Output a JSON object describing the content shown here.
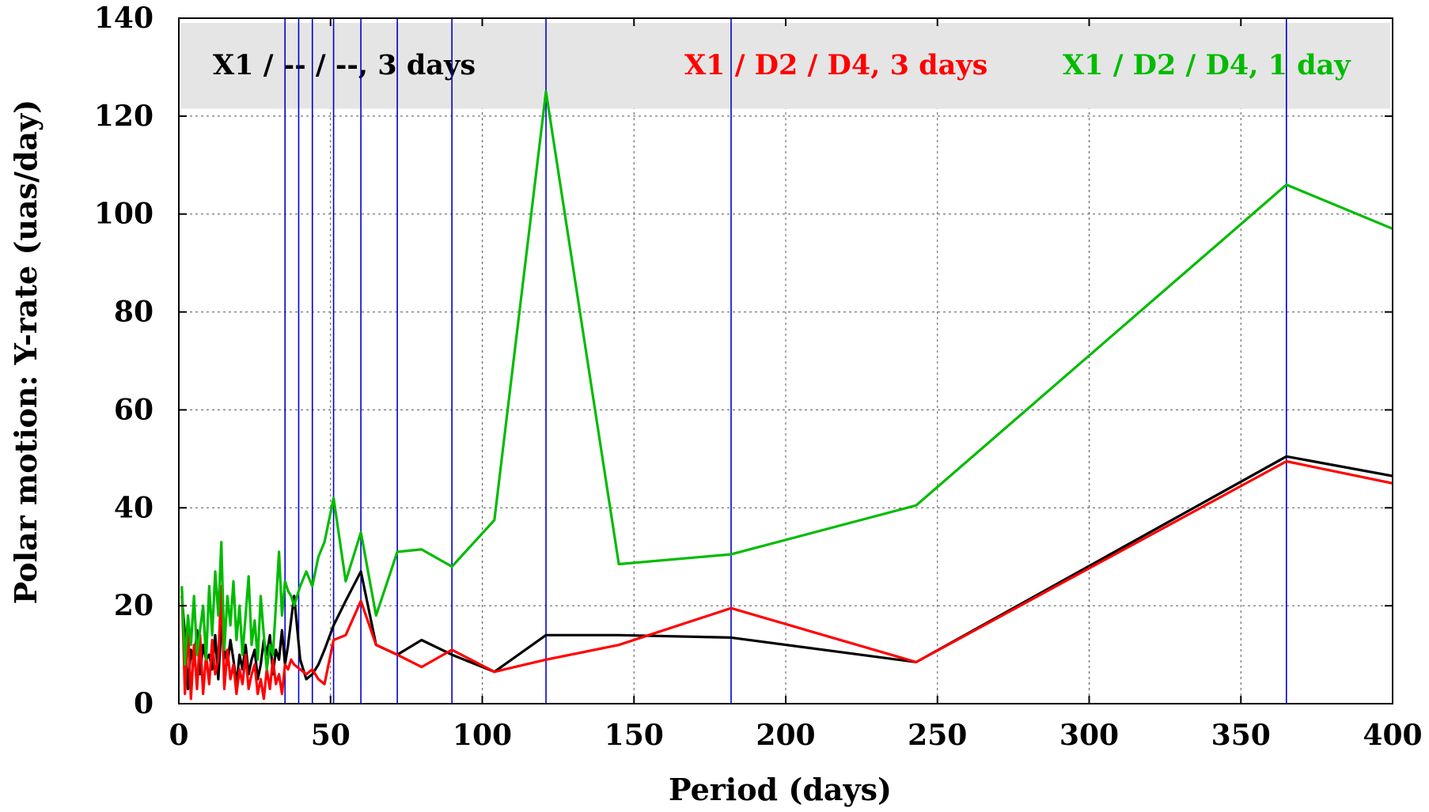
{
  "chart_data": {
    "type": "line",
    "xlabel": "Period (days)",
    "ylabel": "Polar motion:  Y-rate (uas/day)",
    "xlim": [
      0,
      400
    ],
    "ylim": [
      0,
      140
    ],
    "xticks": [
      0,
      50,
      100,
      150,
      200,
      250,
      300,
      350,
      400
    ],
    "yticks": [
      0,
      20,
      40,
      60,
      80,
      100,
      120,
      140
    ],
    "grid": true,
    "legend_placement": "top-inside",
    "legend_background": "#e5e5e5",
    "vertical_lines": {
      "color": "#0000cc",
      "x": [
        35,
        39.5,
        44,
        51,
        60,
        72,
        90,
        121,
        182,
        365
      ]
    },
    "series": [
      {
        "name": "X1 / -- / --, 3 days",
        "color": "#000000",
        "x": [
          1,
          2,
          3,
          4,
          5,
          6,
          7,
          8,
          9,
          10,
          11,
          12,
          13,
          14,
          15,
          16,
          17,
          18,
          19,
          20,
          21,
          22,
          23,
          24,
          25,
          26,
          27,
          28,
          29,
          30,
          31,
          32,
          33,
          34,
          35,
          36,
          37,
          38,
          40,
          42,
          44,
          46,
          48,
          51,
          55,
          60,
          65,
          72,
          80,
          90,
          104,
          121,
          145,
          182,
          243,
          365,
          400
        ],
        "y": [
          22,
          14,
          3,
          11,
          8,
          15,
          6,
          12,
          9,
          10,
          7,
          14,
          5,
          16,
          11,
          8,
          13,
          9,
          4,
          10,
          7,
          12,
          6,
          9,
          11,
          5,
          8,
          13,
          10,
          14,
          6,
          11,
          9,
          15,
          8,
          12,
          17,
          22,
          9,
          5,
          6,
          8,
          11,
          16,
          21,
          27,
          12,
          10,
          13,
          10,
          6.5,
          14,
          14,
          13.5,
          8.5,
          50.5,
          46.5
        ]
      },
      {
        "name": "X1 / D2 / D4, 3 days",
        "color": "#ff0000",
        "x": [
          1,
          2,
          3,
          4,
          5,
          6,
          7,
          8,
          9,
          10,
          11,
          12,
          13,
          14,
          15,
          16,
          17,
          18,
          19,
          20,
          21,
          22,
          23,
          24,
          25,
          26,
          27,
          28,
          29,
          30,
          31,
          32,
          33,
          34,
          35,
          36,
          37,
          38,
          40,
          42,
          44,
          46,
          48,
          51,
          55,
          60,
          65,
          72,
          80,
          90,
          104,
          121,
          145,
          182,
          243,
          365,
          400
        ],
        "y": [
          24,
          2,
          16,
          1,
          12,
          3,
          14,
          2,
          10,
          4,
          13,
          6,
          9,
          24,
          3,
          11,
          5,
          8,
          2,
          7,
          4,
          10,
          3,
          6,
          8,
          2,
          5,
          1,
          7,
          3,
          9,
          4,
          6,
          2,
          8,
          7,
          9,
          8,
          7,
          6,
          7,
          5,
          4,
          13,
          14,
          21,
          12,
          10,
          7.5,
          11,
          6.5,
          9,
          12,
          19.5,
          8.5,
          49.5,
          45
        ]
      },
      {
        "name": "X1 / D2 / D4, 1 day",
        "color": "#00bb00",
        "x": [
          1,
          2,
          3,
          4,
          5,
          6,
          7,
          8,
          9,
          10,
          11,
          12,
          13,
          14,
          15,
          16,
          17,
          18,
          19,
          20,
          21,
          22,
          23,
          24,
          25,
          26,
          27,
          28,
          29,
          30,
          31,
          32,
          33,
          34,
          35,
          36,
          37,
          38,
          40,
          42,
          44,
          46,
          48,
          51,
          55,
          60,
          65,
          72,
          80,
          90,
          104,
          121,
          145,
          182,
          243,
          365,
          400
        ],
        "y": [
          24,
          8,
          18,
          12,
          22,
          10,
          15,
          20,
          9,
          24,
          14,
          27,
          18,
          33,
          11,
          22,
          16,
          25,
          13,
          20,
          10,
          18,
          26,
          12,
          17,
          9,
          22,
          14,
          7,
          12,
          10,
          20,
          31,
          18,
          25,
          23,
          22,
          20,
          24,
          27,
          24,
          30,
          33,
          42,
          25,
          35,
          18,
          31,
          31.5,
          28,
          37.5,
          125,
          28.5,
          30.5,
          40.5,
          106,
          97
        ]
      }
    ]
  }
}
